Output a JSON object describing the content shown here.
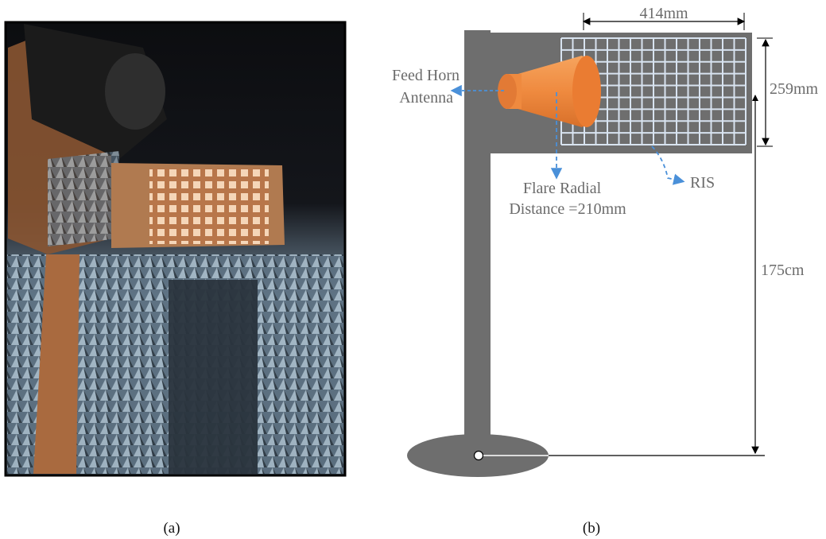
{
  "panel_a": {
    "caption": "(a)",
    "content": "photograph of RIS prototype with feed horn antenna in anechoic chamber"
  },
  "panel_b": {
    "caption": "(b)",
    "labels": {
      "feed_horn_line1": "Feed Horn",
      "feed_horn_line2": "Antenna",
      "flare_line1": "Flare Radial",
      "flare_line2": "Distance =210mm",
      "ris": "RIS",
      "width_dim": "414mm",
      "height_dim": "259mm",
      "stand_height_dim": "175cm"
    },
    "colors": {
      "stand": "#6e6e6e",
      "horn": "#ef8a3f",
      "grid_line": "#d8e3f0",
      "arrow": "#4a90d9",
      "dim_line": "#000000",
      "label_text": "#6b6b6b"
    }
  }
}
